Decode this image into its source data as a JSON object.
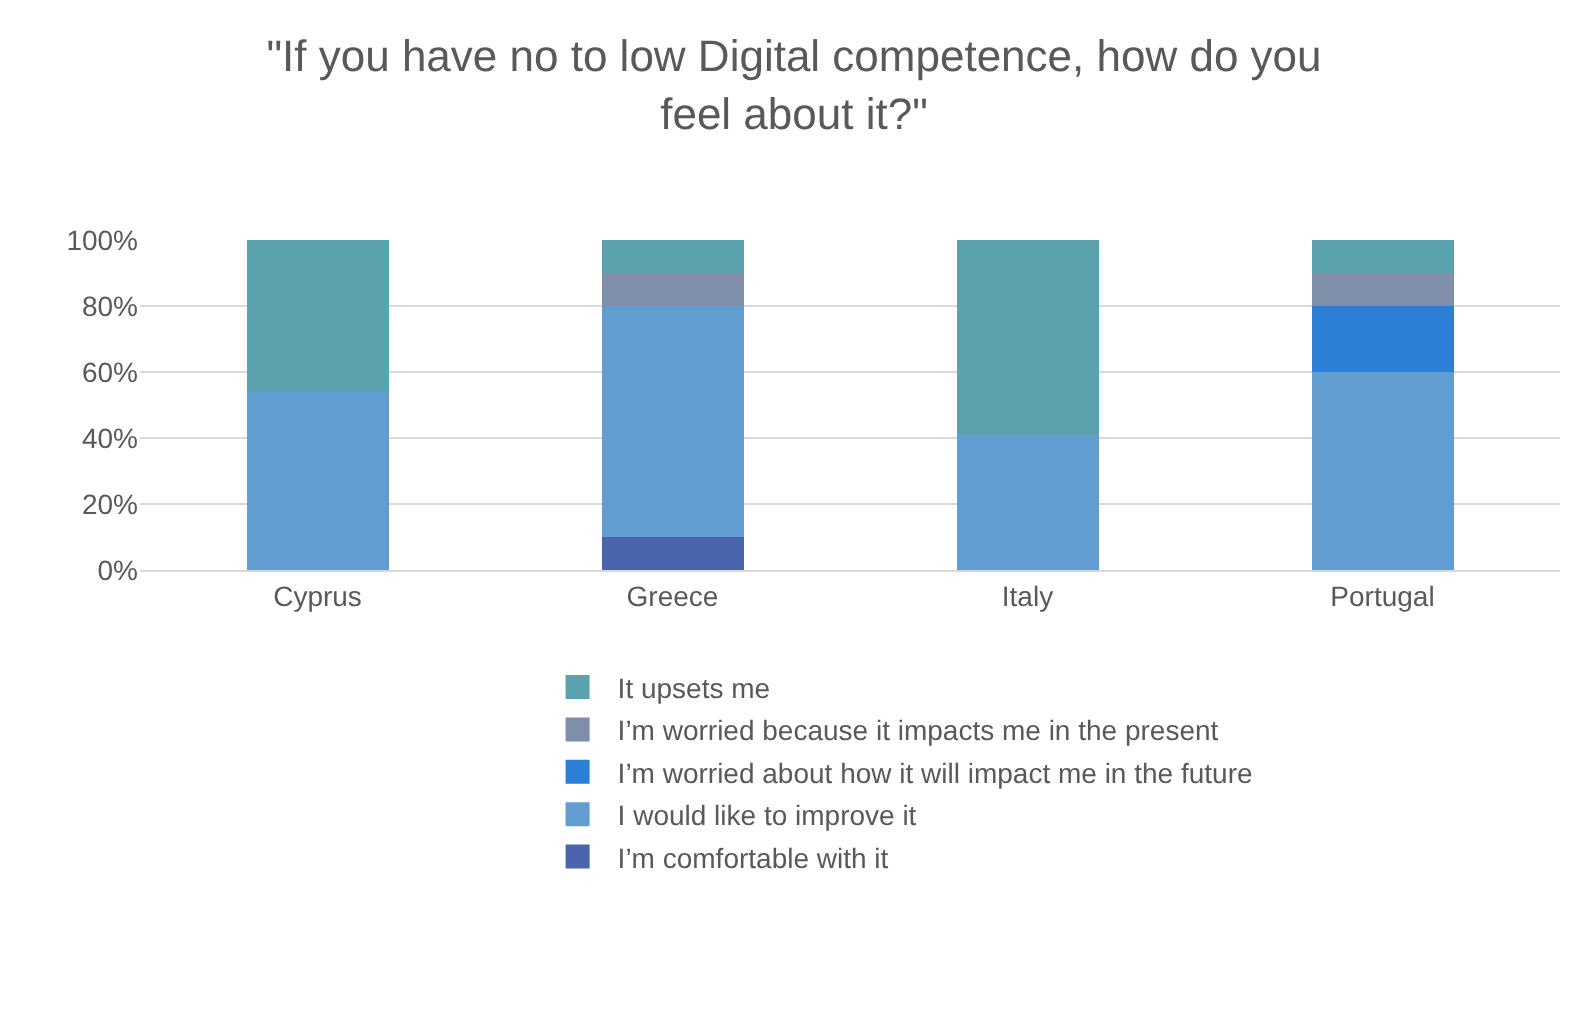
{
  "chart_data": {
    "type": "bar",
    "stacked": true,
    "title": "\"If you have no to low Digital competence, how do you feel about it?\"",
    "categories": [
      "Cyprus",
      "Greece",
      "Italy",
      "Portugal"
    ],
    "series": [
      {
        "name": "I’m comfortable with it",
        "color": "#4a65ae",
        "values": [
          0,
          10,
          0,
          0
        ]
      },
      {
        "name": "I would like to improve it",
        "color": "#629dd1",
        "values": [
          54,
          70,
          41,
          60
        ]
      },
      {
        "name": "I’m worried about how it will impact me in the future",
        "color": "#2c7fd6",
        "values": [
          0,
          0,
          0,
          20
        ]
      },
      {
        "name": "I’m worried because it impacts me in the present",
        "color": "#7f8fa9",
        "values": [
          0,
          10,
          0,
          10
        ]
      },
      {
        "name": "It upsets me",
        "color": "#5aa2ae",
        "values": [
          46,
          10,
          59,
          10
        ]
      }
    ],
    "ylim": [
      0,
      100
    ],
    "yticks": [
      {
        "value": 0,
        "label": "0%"
      },
      {
        "value": 20,
        "label": "20%"
      },
      {
        "value": 40,
        "label": "40%"
      },
      {
        "value": 60,
        "label": "60%"
      },
      {
        "value": 80,
        "label": "80%"
      },
      {
        "value": 100,
        "label": "100%"
      }
    ],
    "grid": "y",
    "legend": "bottom"
  }
}
